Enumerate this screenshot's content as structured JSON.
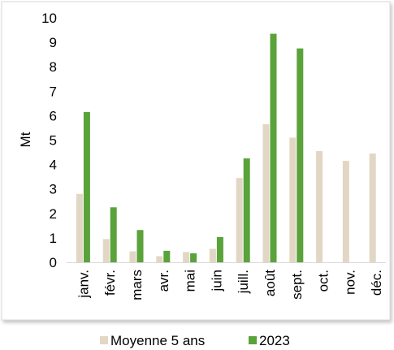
{
  "chart_data": {
    "type": "bar",
    "title": "",
    "xlabel": "",
    "ylabel": "Mt",
    "ylim": [
      0,
      10
    ],
    "yticks": [
      0,
      1,
      2,
      3,
      4,
      5,
      6,
      7,
      8,
      9,
      10
    ],
    "grid": false,
    "legend_position": "bottom",
    "categories": [
      "janv.",
      "févr.",
      "mars",
      "avr.",
      "mai",
      "juin",
      "juill.",
      "août",
      "sept.",
      "oct.",
      "nov.",
      "déc."
    ],
    "series": [
      {
        "name": "Moyenne 5 ans",
        "color": "#e2d7c4",
        "values": [
          2.8,
          0.95,
          0.45,
          0.25,
          0.42,
          0.55,
          3.45,
          5.65,
          5.1,
          4.55,
          4.15,
          4.45
        ]
      },
      {
        "name": "2023",
        "color": "#5aa23a",
        "values": [
          6.15,
          2.25,
          1.32,
          0.47,
          0.37,
          1.03,
          4.25,
          9.35,
          8.75,
          null,
          null,
          null
        ]
      }
    ]
  }
}
